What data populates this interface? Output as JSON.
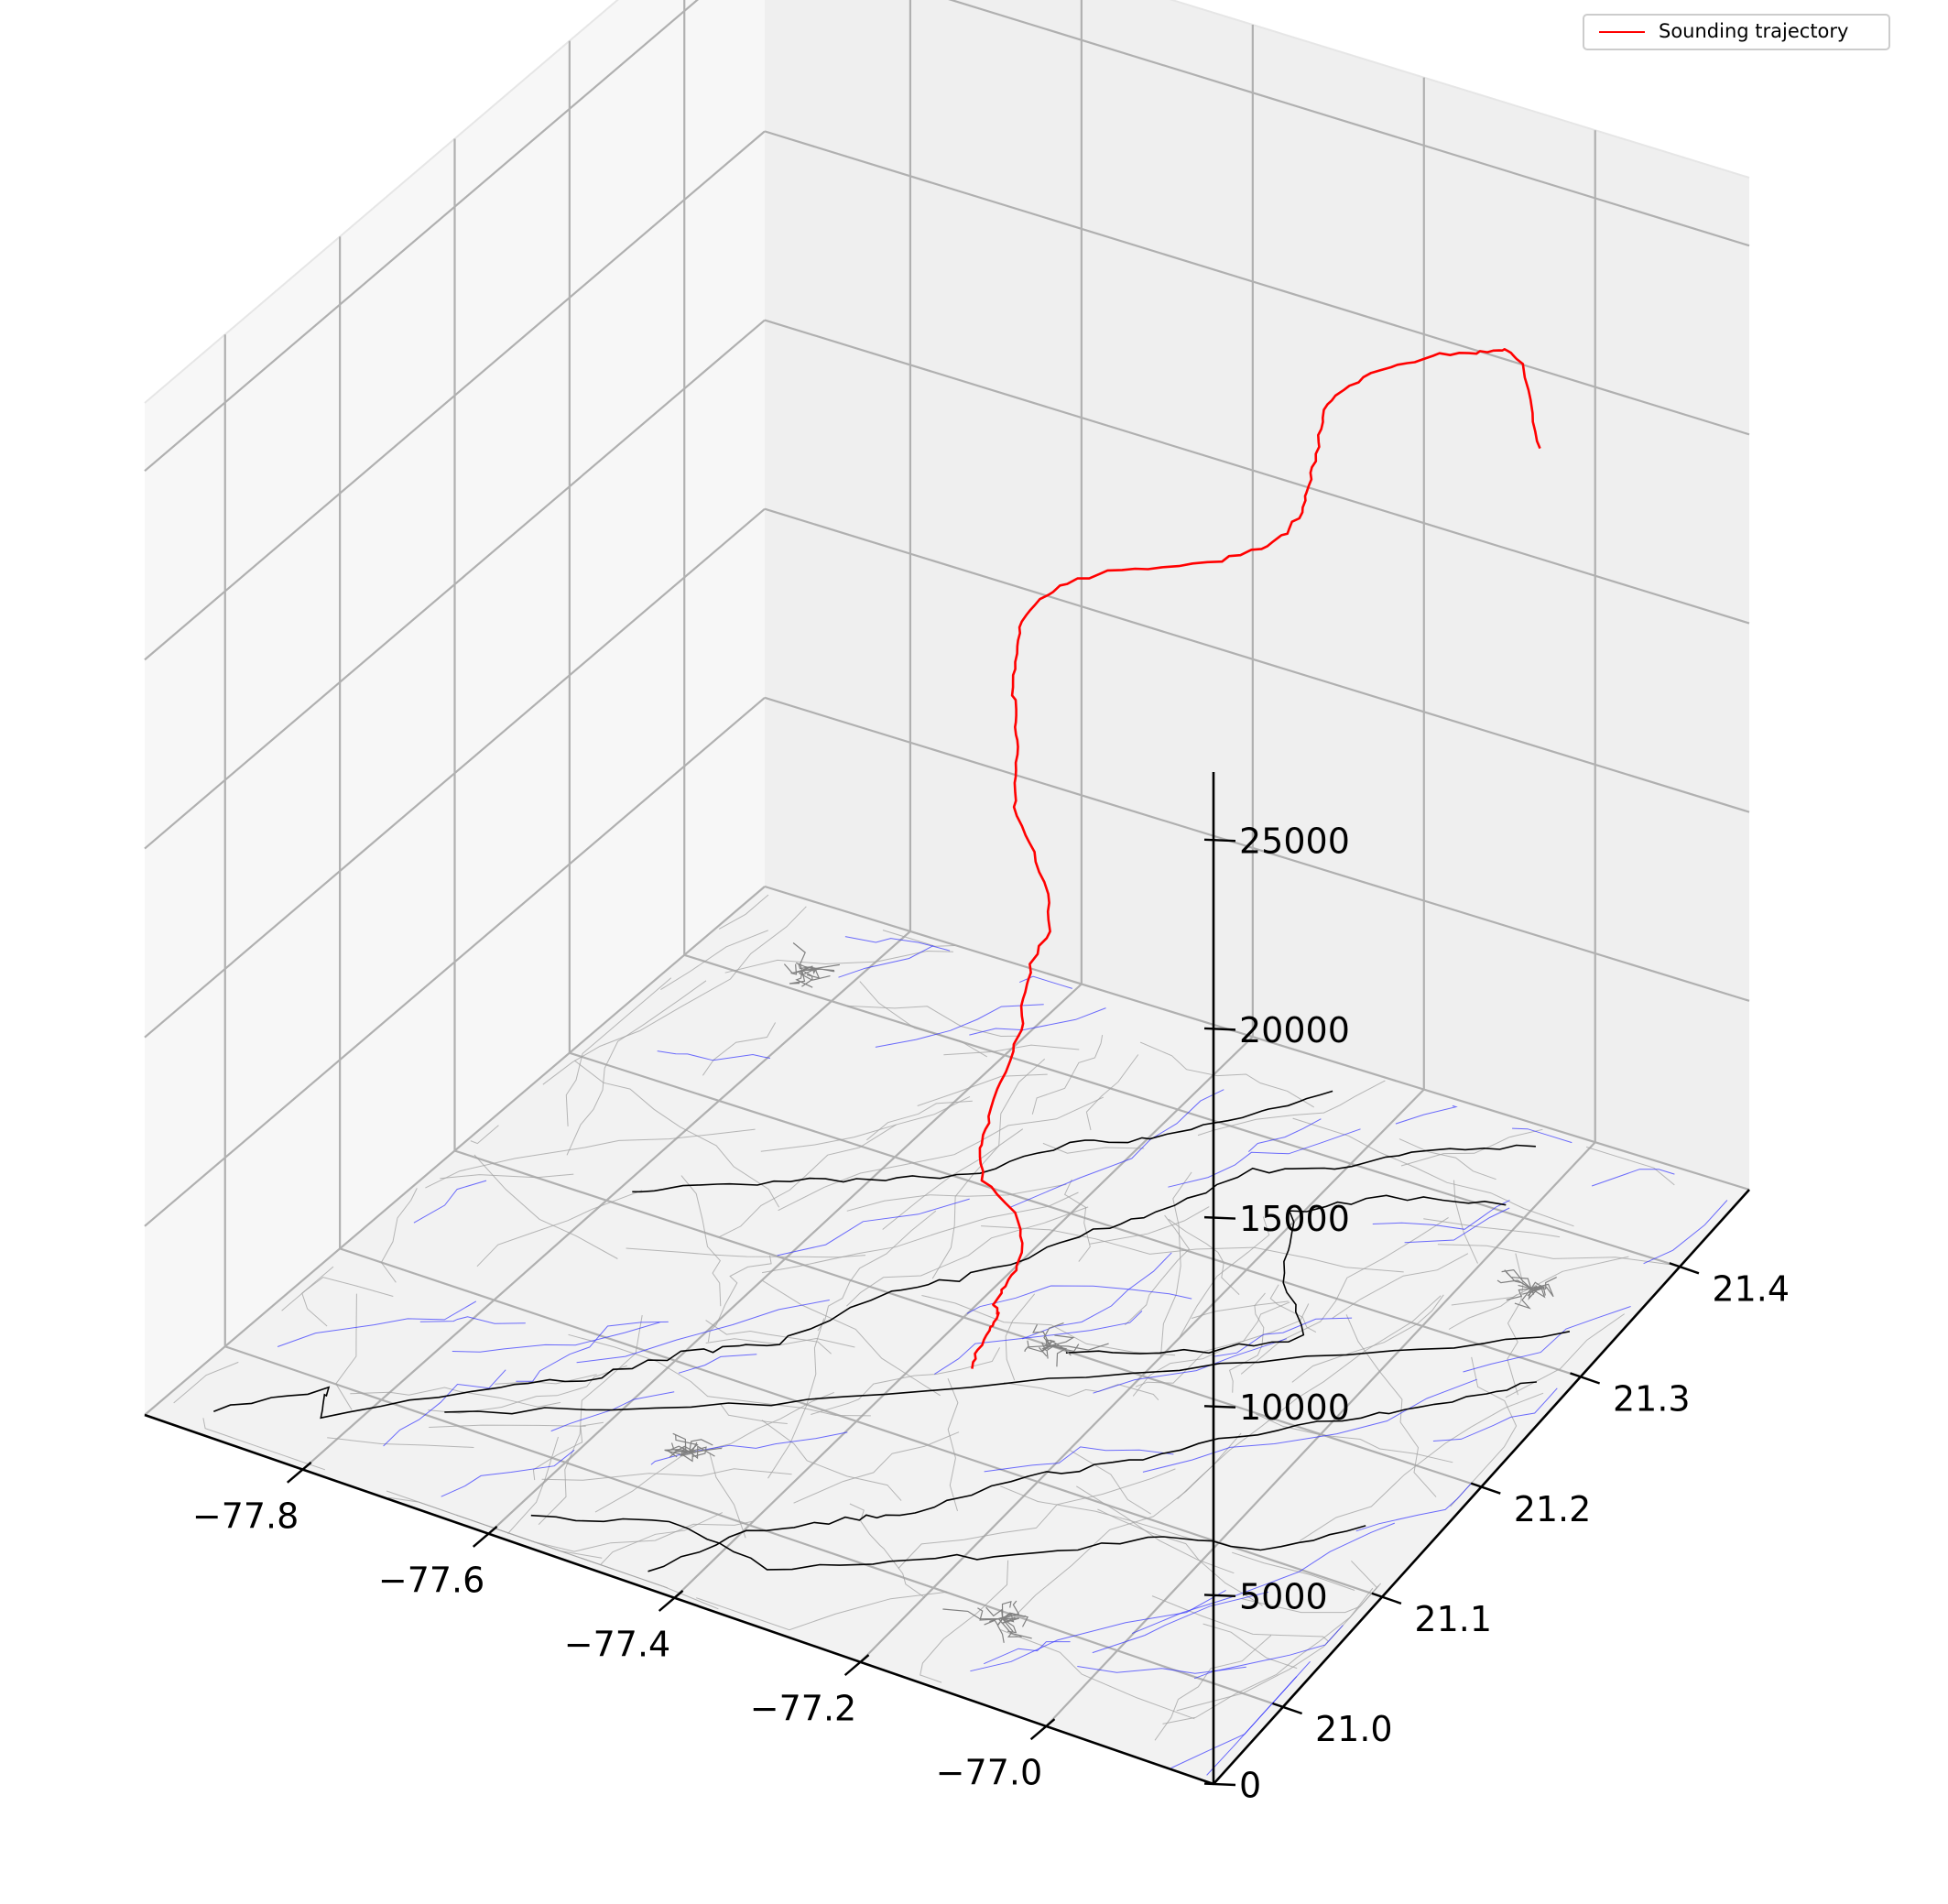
{
  "chart_data": {
    "type": "line3d",
    "title": "",
    "legend": {
      "position": "top-right",
      "entries": [
        {
          "label": "Sounding trajectory",
          "color": "#ff0000"
        }
      ]
    },
    "axes": {
      "x": {
        "label": "",
        "ticks": [
          -77.8,
          -77.6,
          -77.4,
          -77.2,
          -77.0
        ],
        "tick_labels": [
          "−77.8",
          "−77.6",
          "−77.4",
          "−77.2",
          "−77.0"
        ],
        "lim": [
          -77.97,
          -76.82
        ]
      },
      "y": {
        "label": "",
        "ticks": [
          21.0,
          21.1,
          21.2,
          21.3,
          21.4
        ],
        "tick_labels": [
          "21.0",
          "21.1",
          "21.2",
          "21.3",
          "21.4"
        ],
        "lim": [
          20.93,
          21.47
        ]
      },
      "z": {
        "label": "",
        "ticks": [
          0,
          5000,
          10000,
          15000,
          20000,
          25000
        ],
        "tick_labels": [
          "0",
          "5000",
          "10000",
          "15000",
          "20000",
          "25000"
        ],
        "lim": [
          0,
          26800
        ]
      }
    },
    "grid": true,
    "basemap": {
      "boundaries_color": "#000000",
      "rivers_color": "#3030ff",
      "roads_color": "#a0a0a0"
    },
    "series": [
      {
        "name": "Sounding trajectory",
        "color": "#ff0000",
        "points": [
          [
            -77.35,
            21.165,
            0
          ],
          [
            -77.348,
            21.17,
            400
          ],
          [
            -77.34,
            21.175,
            800
          ],
          [
            -77.333,
            21.175,
            1200
          ],
          [
            -77.325,
            21.17,
            1600
          ],
          [
            -77.32,
            21.162,
            2000
          ],
          [
            -77.313,
            21.163,
            2400
          ],
          [
            -77.306,
            21.169,
            2800
          ],
          [
            -77.309,
            21.18,
            3200
          ],
          [
            -77.331,
            21.19,
            3600
          ],
          [
            -77.372,
            21.195,
            4000
          ],
          [
            -77.387,
            21.205,
            4400
          ],
          [
            -77.39,
            21.215,
            4800
          ],
          [
            -77.4,
            21.23,
            5200
          ],
          [
            -77.405,
            21.25,
            5600
          ],
          [
            -77.41,
            21.263,
            6000
          ],
          [
            -77.418,
            21.271,
            6500
          ],
          [
            -77.42,
            21.28,
            7000
          ],
          [
            -77.418,
            21.295,
            7500
          ],
          [
            -77.437,
            21.308,
            8000
          ],
          [
            -77.466,
            21.32,
            8500
          ],
          [
            -77.499,
            21.33,
            9000
          ],
          [
            -77.511,
            21.338,
            9500
          ],
          [
            -77.519,
            21.347,
            10000
          ],
          [
            -77.526,
            21.352,
            10500
          ],
          [
            -77.535,
            21.357,
            11000
          ],
          [
            -77.543,
            21.363,
            11500
          ],
          [
            -77.549,
            21.37,
            12000
          ],
          [
            -77.546,
            21.374,
            12600
          ],
          [
            -77.53,
            21.377,
            13200
          ],
          [
            -77.5,
            21.379,
            13800
          ],
          [
            -77.455,
            21.38,
            14400
          ],
          [
            -77.392,
            21.38,
            15000
          ],
          [
            -77.327,
            21.381,
            15600
          ],
          [
            -77.282,
            21.382,
            16200
          ],
          [
            -77.254,
            21.383,
            16800
          ],
          [
            -77.238,
            21.384,
            17400
          ],
          [
            -77.232,
            21.385,
            18000
          ],
          [
            -77.227,
            21.386,
            18600
          ],
          [
            -77.222,
            21.388,
            19300
          ],
          [
            -77.219,
            21.388,
            20000
          ],
          [
            -77.205,
            21.39,
            20600
          ],
          [
            -77.176,
            21.393,
            21200
          ],
          [
            -77.14,
            21.395,
            21700
          ],
          [
            -77.103,
            21.397,
            22200
          ],
          [
            -77.062,
            21.398,
            22500
          ],
          [
            -77.031,
            21.398,
            22800
          ],
          [
            -77.018,
            21.398,
            22900
          ],
          [
            -77.003,
            21.4,
            22600
          ],
          [
            -76.993,
            21.402,
            21300
          ],
          [
            -76.985,
            21.403,
            20400
          ]
        ]
      }
    ]
  }
}
